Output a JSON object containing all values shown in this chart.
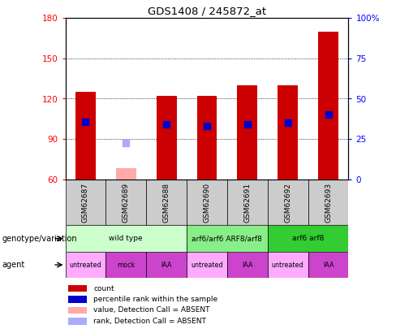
{
  "title": "GDS1408 / 245872_at",
  "samples": [
    "GSM62687",
    "GSM62689",
    "GSM62688",
    "GSM62690",
    "GSM62691",
    "GSM62692",
    "GSM62693"
  ],
  "bar_heights": [
    125,
    68,
    122,
    122,
    130,
    130,
    170
  ],
  "bar_colors_red": [
    "#cc0000",
    "#ffaaaa",
    "#cc0000",
    "#cc0000",
    "#cc0000",
    "#cc0000",
    "#cc0000"
  ],
  "percentile_values": [
    103,
    null,
    101,
    100,
    101,
    102,
    108
  ],
  "percentile_absent": [
    null,
    87,
    null,
    null,
    null,
    null,
    null
  ],
  "ylim_left": [
    60,
    180
  ],
  "ylim_right": [
    0,
    100
  ],
  "yticks_left": [
    60,
    90,
    120,
    150,
    180
  ],
  "yticks_right": [
    0,
    25,
    50,
    75,
    100
  ],
  "ytick_labels_right": [
    "0",
    "25",
    "50",
    "75",
    "100%"
  ],
  "base": 60,
  "genotype_groups": [
    {
      "label": "wild type",
      "cols": [
        0,
        1,
        2
      ],
      "color": "#ccffcc"
    },
    {
      "label": "arf6/arf6 ARF8/arf8",
      "cols": [
        3,
        4
      ],
      "color": "#88ee88"
    },
    {
      "label": "arf6 arf8",
      "cols": [
        5,
        6
      ],
      "color": "#33cc33"
    }
  ],
  "agent_labels": [
    "untreated",
    "mock",
    "IAA",
    "untreated",
    "IAA",
    "untreated",
    "IAA"
  ],
  "agent_colors": [
    "#ffaaff",
    "#cc44cc",
    "#cc44cc",
    "#ffaaff",
    "#cc44cc",
    "#ffaaff",
    "#cc44cc"
  ],
  "legend_items": [
    {
      "label": "count",
      "color": "#cc0000"
    },
    {
      "label": "percentile rank within the sample",
      "color": "#0000cc"
    },
    {
      "label": "value, Detection Call = ABSENT",
      "color": "#ffaaaa"
    },
    {
      "label": "rank, Detection Call = ABSENT",
      "color": "#aaaaff"
    }
  ],
  "blue_dot_color": "#0000cc",
  "absent_rank_color": "#aaaaff",
  "bar_width": 0.5,
  "dot_size": 40
}
